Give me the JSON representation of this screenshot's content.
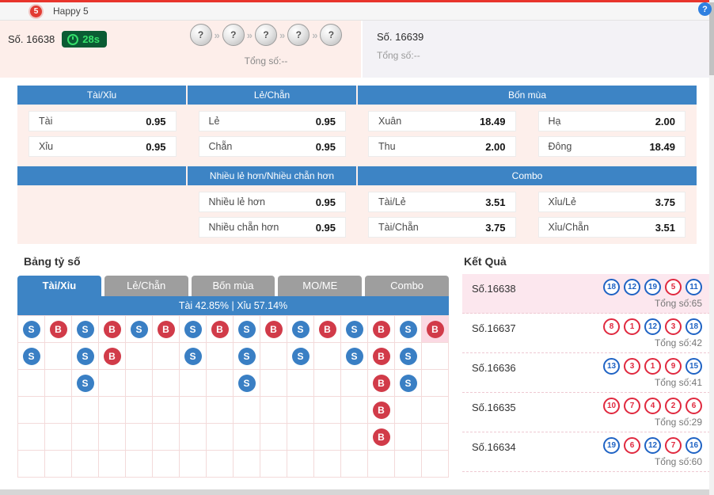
{
  "titlebar": {
    "logo": "5",
    "title": "Happy 5",
    "help": "?"
  },
  "draw": {
    "current": {
      "label": "Số. 16638",
      "timer": "28s",
      "balls": [
        "?",
        "?",
        "?",
        "?",
        "?"
      ],
      "separator": "»",
      "total": "Tổng số:--"
    },
    "next": {
      "label": "Số. 16639",
      "total": "Tổng số:--"
    }
  },
  "betting": {
    "tables": [
      {
        "headers": [
          {
            "label": "Tài/Xỉu",
            "span": 1
          },
          {
            "label": "Lẻ/Chẵn",
            "span": 1
          },
          {
            "label": "Bốn mùa",
            "span": 2
          }
        ],
        "rows": [
          [
            {
              "label": "Tài",
              "odds": "0.95"
            },
            {
              "label": "Lẻ",
              "odds": "0.95"
            },
            {
              "label": "Xuân",
              "odds": "18.49"
            },
            {
              "label": "Hạ",
              "odds": "2.00"
            }
          ],
          [
            {
              "label": "Xỉu",
              "odds": "0.95"
            },
            {
              "label": "Chẵn",
              "odds": "0.95"
            },
            {
              "label": "Thu",
              "odds": "2.00"
            },
            {
              "label": "Đông",
              "odds": "18.49"
            }
          ]
        ]
      },
      {
        "headers": [
          {
            "label": "",
            "span": 1
          },
          {
            "label": "Nhiều lẻ hơn/Nhiều chẵn hơn",
            "span": 1
          },
          {
            "label": "Combo",
            "span": 2
          }
        ],
        "rows": [
          [
            null,
            {
              "label": "Nhiều lẻ hơn",
              "odds": "0.95"
            },
            {
              "label": "Tài/Lẻ",
              "odds": "3.51"
            },
            {
              "label": "Xỉu/Lẻ",
              "odds": "3.75"
            }
          ],
          [
            null,
            {
              "label": "Nhiều chẵn hơn",
              "odds": "0.95"
            },
            {
              "label": "Tài/Chẵn",
              "odds": "3.75"
            },
            {
              "label": "Xỉu/Chẵn",
              "odds": "3.51"
            }
          ]
        ]
      }
    ]
  },
  "score": {
    "title": "Bảng tỷ số",
    "tabs": [
      {
        "key": "taixiu",
        "label": "Tài/Xỉu",
        "active": true
      },
      {
        "key": "lechan",
        "label": "Lẻ/Chẵn",
        "active": false
      },
      {
        "key": "bonmua",
        "label": "Bốn mùa",
        "active": false
      },
      {
        "key": "mome",
        "label": "MO/ME",
        "active": false
      },
      {
        "key": "combo",
        "label": "Combo",
        "active": false
      }
    ],
    "percent": "Tài 42.85% | Xỉu 57.14%",
    "grid": [
      "SBSBSBSBSBSBSBSB",
      "S.SB..S.S.S.SBS.",
      "..S.....S....BS.",
      ".............B..",
      ".............B..",
      "................"
    ],
    "highlight_cell": [
      0,
      15
    ],
    "mark_colors": {
      "s": "#3a7fc4",
      "b": "#d13b49"
    }
  },
  "results": {
    "title": "Kết Quả",
    "rows": [
      {
        "label": "Số.16638",
        "highlight": true,
        "balls": [
          {
            "n": "18",
            "c": "blue"
          },
          {
            "n": "12",
            "c": "blue"
          },
          {
            "n": "19",
            "c": "blue"
          },
          {
            "n": "5",
            "c": "red"
          },
          {
            "n": "11",
            "c": "blue"
          }
        ],
        "total": "Tổng số:65"
      },
      {
        "label": "Số.16637",
        "highlight": false,
        "balls": [
          {
            "n": "8",
            "c": "red"
          },
          {
            "n": "1",
            "c": "red"
          },
          {
            "n": "12",
            "c": "blue"
          },
          {
            "n": "3",
            "c": "red"
          },
          {
            "n": "18",
            "c": "blue"
          }
        ],
        "total": "Tổng số:42"
      },
      {
        "label": "Số.16636",
        "highlight": false,
        "balls": [
          {
            "n": "13",
            "c": "blue"
          },
          {
            "n": "3",
            "c": "red"
          },
          {
            "n": "1",
            "c": "red"
          },
          {
            "n": "9",
            "c": "red"
          },
          {
            "n": "15",
            "c": "blue"
          }
        ],
        "total": "Tổng số:41"
      },
      {
        "label": "Số.16635",
        "highlight": false,
        "balls": [
          {
            "n": "10",
            "c": "red"
          },
          {
            "n": "7",
            "c": "red"
          },
          {
            "n": "4",
            "c": "red"
          },
          {
            "n": "2",
            "c": "red"
          },
          {
            "n": "6",
            "c": "red"
          }
        ],
        "total": "Tổng số:29"
      },
      {
        "label": "Số.16634",
        "highlight": false,
        "balls": [
          {
            "n": "19",
            "c": "blue"
          },
          {
            "n": "6",
            "c": "red"
          },
          {
            "n": "12",
            "c": "blue"
          },
          {
            "n": "7",
            "c": "red"
          },
          {
            "n": "16",
            "c": "blue"
          }
        ],
        "total": "Tổng số:60"
      }
    ],
    "ball_colors": {
      "red": "#e0293f",
      "blue": "#1f63c4"
    }
  },
  "colors": {
    "accent_red": "#e8352c",
    "header_blue": "#3d84c5",
    "timer_green": "#35e06b",
    "panel_pink": "#fdeeea",
    "panel_gray": "#f3f2f6"
  }
}
